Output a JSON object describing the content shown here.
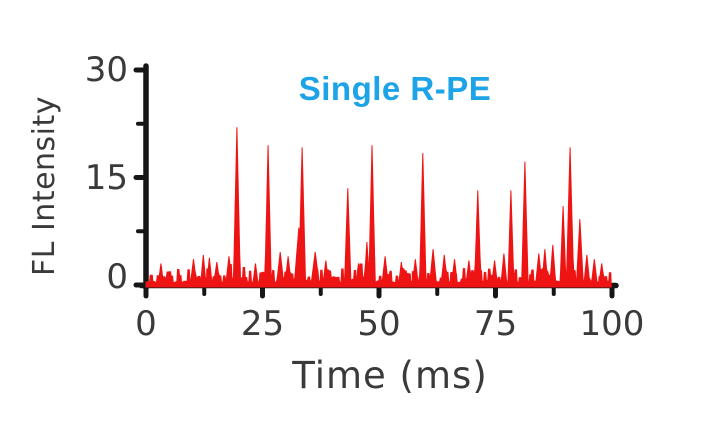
{
  "figure": {
    "title": {
      "text": "Single R-PE",
      "color": "#1CA3E8"
    },
    "colors": {
      "trace": "#EE1414",
      "axis": "#161616",
      "text": "#3A3A3A",
      "background": "#FFFFFF"
    },
    "axes": {
      "x": {
        "label": "Time (ms)",
        "range": [
          0,
          100
        ],
        "major_ticks": [
          0,
          25,
          50,
          75,
          100
        ],
        "minor_ticks": [
          12.5,
          37.5,
          62.5,
          87.5
        ],
        "tick_labels": [
          "0",
          "25",
          "50",
          "75",
          "100"
        ]
      },
      "y": {
        "label": "FL Intensity",
        "range": [
          0,
          30
        ],
        "major_ticks": [
          0,
          15,
          30
        ],
        "minor_ticks": [
          7.5,
          22.5
        ],
        "tick_labels": [
          "0",
          "15",
          "30"
        ]
      }
    }
  },
  "chart_data": {
    "type": "line",
    "title": "Single R-PE",
    "xlabel": "Time (ms)",
    "ylabel": "FL Intensity",
    "xlim": [
      0,
      100
    ],
    "ylim": [
      0,
      30
    ],
    "grid": false,
    "legend": "none",
    "description": "Single-molecule fluorescence intensity time trace; flat baseline noise (~0-3) punctuated by sharp photon bursts from single R-PE molecules.",
    "bursts": [
      {
        "t": 3.2,
        "peak": 3.0,
        "width": 1.2
      },
      {
        "t": 10.2,
        "peak": 3.6,
        "width": 1.4
      },
      {
        "t": 12.3,
        "peak": 4.2,
        "width": 1.2
      },
      {
        "t": 13.6,
        "peak": 3.8,
        "width": 1.2
      },
      {
        "t": 15.2,
        "peak": 3.2,
        "width": 1.4
      },
      {
        "t": 17.8,
        "peak": 4.0,
        "width": 1.4
      },
      {
        "t": 19.5,
        "peak": 22.0,
        "width": 1.5
      },
      {
        "t": 23.5,
        "peak": 3.0,
        "width": 1.2
      },
      {
        "t": 26.2,
        "peak": 19.5,
        "width": 1.4
      },
      {
        "t": 28.8,
        "peak": 4.6,
        "width": 1.6
      },
      {
        "t": 30.5,
        "peak": 4.0,
        "width": 1.4
      },
      {
        "t": 32.8,
        "peak": 8.0,
        "width": 2.0
      },
      {
        "t": 33.5,
        "peak": 19.2,
        "width": 1.5
      },
      {
        "t": 36.3,
        "peak": 4.6,
        "width": 1.8
      },
      {
        "t": 38.6,
        "peak": 3.4,
        "width": 1.3
      },
      {
        "t": 43.3,
        "peak": 13.5,
        "width": 1.4
      },
      {
        "t": 45.6,
        "peak": 3.0,
        "width": 1.2
      },
      {
        "t": 47.4,
        "peak": 6.0,
        "width": 1.2
      },
      {
        "t": 48.5,
        "peak": 19.5,
        "width": 1.4
      },
      {
        "t": 51.3,
        "peak": 4.0,
        "width": 1.4
      },
      {
        "t": 54.8,
        "peak": 3.2,
        "width": 1.2
      },
      {
        "t": 57.8,
        "peak": 3.6,
        "width": 1.3
      },
      {
        "t": 59.4,
        "peak": 18.4,
        "width": 1.4
      },
      {
        "t": 61.6,
        "peak": 5.0,
        "width": 1.5
      },
      {
        "t": 64.0,
        "peak": 4.2,
        "width": 1.4
      },
      {
        "t": 66.2,
        "peak": 3.6,
        "width": 1.3
      },
      {
        "t": 69.3,
        "peak": 3.4,
        "width": 1.3
      },
      {
        "t": 71.2,
        "peak": 13.2,
        "width": 1.4
      },
      {
        "t": 74.8,
        "peak": 3.4,
        "width": 1.3
      },
      {
        "t": 76.8,
        "peak": 4.4,
        "width": 1.3
      },
      {
        "t": 78.3,
        "peak": 13.2,
        "width": 1.3
      },
      {
        "t": 81.3,
        "peak": 17.2,
        "width": 1.4
      },
      {
        "t": 84.3,
        "peak": 4.4,
        "width": 1.4
      },
      {
        "t": 85.6,
        "peak": 5.0,
        "width": 1.3
      },
      {
        "t": 87.3,
        "peak": 5.6,
        "width": 1.3
      },
      {
        "t": 89.5,
        "peak": 11.0,
        "width": 1.3
      },
      {
        "t": 91.0,
        "peak": 19.2,
        "width": 1.6
      },
      {
        "t": 93.1,
        "peak": 9.2,
        "width": 1.5
      },
      {
        "t": 94.6,
        "peak": 4.2,
        "width": 1.3
      },
      {
        "t": 96.2,
        "peak": 3.6,
        "width": 1.3
      },
      {
        "t": 97.8,
        "peak": 3.0,
        "width": 1.3
      }
    ],
    "baseline_noise": {
      "seed": 9,
      "block_ms": 0.45,
      "min": 0.35,
      "max": 3.2,
      "bump_probability": 0.1,
      "bump_extra": 1.0
    }
  }
}
